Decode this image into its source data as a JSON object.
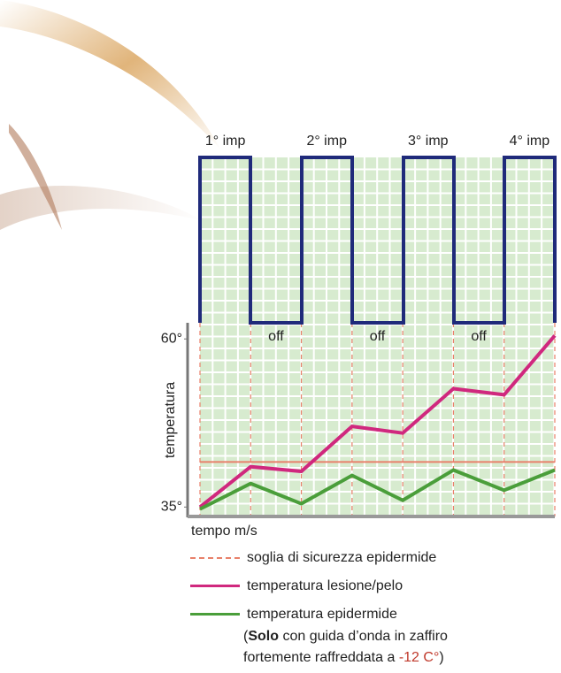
{
  "chart_data": {
    "type": "line",
    "pulse_labels": [
      "1° imp",
      "2° imp",
      "3° imp",
      "4° imp"
    ],
    "off_label": "off",
    "y_axis_label": "temperatura",
    "x_axis_label": "tempo m/s",
    "categories": [
      null,
      null,
      null,
      null,
      null,
      null,
      null,
      null
    ],
    "series": [
      {
        "name": "temperatura lesione/pelo",
        "color": "#d0287e",
        "values": [
          35,
          41,
          40.3,
          47,
          46,
          52.6,
          51.7,
          60.5
        ]
      },
      {
        "name": "temperatura epidermide",
        "color": "#4a9e3a",
        "values": [
          34.7,
          38.5,
          35.5,
          39.7,
          36,
          40.5,
          37.5,
          40.5
        ]
      }
    ],
    "threshold": {
      "name": "soglia di sicurezza epidermide",
      "value": 41.7,
      "color": "#e8806a"
    },
    "note": [
      "(",
      "Solo",
      " con guida d’onda in zaffiro",
      "fortemente raffreddata a ",
      "-12 C°",
      ")"
    ],
    "ylim": [
      33.6,
      62.4
    ],
    "yticks": [
      {
        "value": 35,
        "label": "35°"
      },
      {
        "value": 60,
        "label": "60°"
      }
    ]
  }
}
